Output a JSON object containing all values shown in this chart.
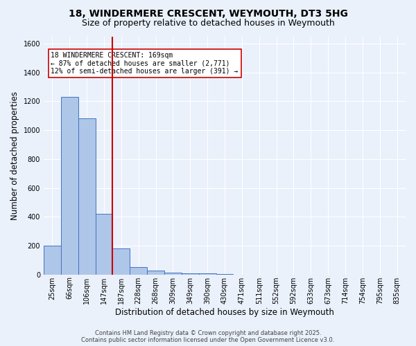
{
  "title": "18, WINDERMERE CRESCENT, WEYMOUTH, DT3 5HG",
  "subtitle": "Size of property relative to detached houses in Weymouth",
  "xlabel": "Distribution of detached houses by size in Weymouth",
  "ylabel": "Number of detached properties",
  "bar_categories": [
    "25sqm",
    "66sqm",
    "106sqm",
    "147sqm",
    "187sqm",
    "228sqm",
    "268sqm",
    "309sqm",
    "349sqm",
    "390sqm",
    "430sqm",
    "471sqm",
    "511sqm",
    "552sqm",
    "592sqm",
    "633sqm",
    "673sqm",
    "714sqm",
    "754sqm",
    "795sqm",
    "835sqm"
  ],
  "bar_values": [
    200,
    1230,
    1080,
    420,
    180,
    50,
    25,
    15,
    10,
    8,
    4,
    0,
    0,
    0,
    0,
    0,
    0,
    0,
    0,
    0,
    0
  ],
  "bar_color": "#aec6e8",
  "bar_edge_color": "#4472c4",
  "ylim": [
    0,
    1650
  ],
  "yticks": [
    0,
    200,
    400,
    600,
    800,
    1000,
    1200,
    1400,
    1600
  ],
  "annotation_line1": "18 WINDERMERE CRESCENT: 169sqm",
  "annotation_line2": "← 87% of detached houses are smaller (2,771)",
  "annotation_line3": "12% of semi-detached houses are larger (391) →",
  "footer_line1": "Contains HM Land Registry data © Crown copyright and database right 2025.",
  "footer_line2": "Contains public sector information licensed under the Open Government Licence v3.0.",
  "background_color": "#eaf1fb",
  "grid_color": "#ffffff",
  "title_fontsize": 10,
  "subtitle_fontsize": 9,
  "axis_label_fontsize": 8.5,
  "tick_fontsize": 7,
  "annotation_fontsize": 7,
  "footer_fontsize": 6
}
